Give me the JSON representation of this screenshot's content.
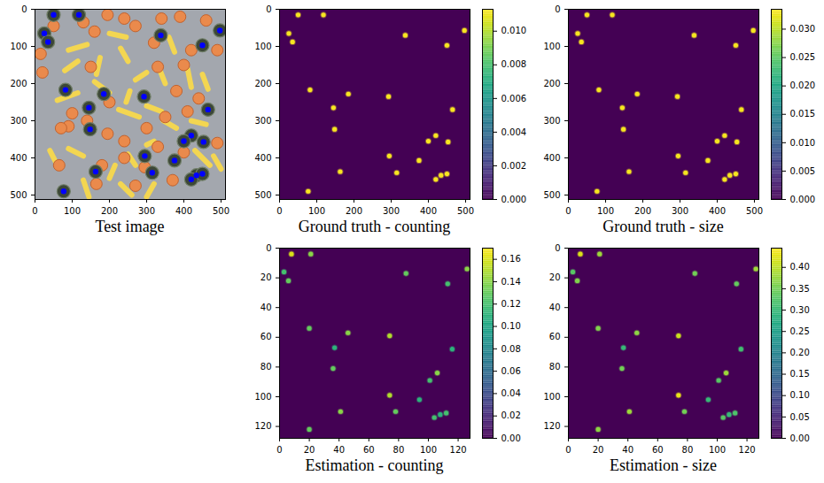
{
  "chart_data": [
    {
      "type": "image",
      "title": "Test image",
      "xlim": [
        0,
        512
      ],
      "ylim": [
        512,
        0
      ],
      "xticks": [
        0,
        100,
        200,
        300,
        400,
        500
      ],
      "yticks": [
        0,
        100,
        200,
        300,
        400,
        500
      ],
      "color": "#0000ff",
      "apples": [
        [
          50,
          45
        ],
        [
          130,
          35
        ],
        [
          195,
          15
        ],
        [
          15,
          120
        ],
        [
          20,
          170
        ],
        [
          160,
          60
        ],
        [
          240,
          25
        ],
        [
          270,
          45
        ],
        [
          340,
          25
        ],
        [
          390,
          20
        ],
        [
          460,
          30
        ],
        [
          320,
          90
        ],
        [
          420,
          110
        ],
        [
          490,
          110
        ],
        [
          150,
          155
        ],
        [
          330,
          155
        ],
        [
          400,
          150
        ],
        [
          200,
          250
        ],
        [
          380,
          220
        ],
        [
          440,
          240
        ],
        [
          100,
          280
        ],
        [
          140,
          300
        ],
        [
          90,
          315
        ],
        [
          350,
          290
        ],
        [
          410,
          275
        ],
        [
          300,
          320
        ],
        [
          195,
          335
        ],
        [
          70,
          320
        ],
        [
          240,
          355
        ],
        [
          490,
          360
        ],
        [
          330,
          370
        ],
        [
          400,
          385
        ],
        [
          65,
          420
        ],
        [
          295,
          425
        ],
        [
          165,
          470
        ],
        [
          270,
          475
        ],
        [
          370,
          460
        ],
        [
          180,
          420
        ],
        [
          240,
          400
        ]
      ],
      "bananas": [
        [
          90,
          110,
          140,
          95
        ],
        [
          200,
          65,
          245,
          75
        ],
        [
          115,
          140,
          80,
          165
        ],
        [
          175,
          130,
          165,
          175
        ],
        [
          230,
          105,
          250,
          140
        ],
        [
          360,
          75,
          375,
          115
        ],
        [
          160,
          195,
          200,
          225
        ],
        [
          115,
          225,
          60,
          245
        ],
        [
          270,
          190,
          300,
          170
        ],
        [
          330,
          150,
          350,
          200
        ],
        [
          410,
          160,
          420,
          210
        ],
        [
          450,
          175,
          465,
          215
        ],
        [
          255,
          220,
          245,
          250
        ],
        [
          225,
          270,
          280,
          290
        ],
        [
          300,
          260,
          340,
          275
        ],
        [
          345,
          300,
          380,
          320
        ],
        [
          420,
          300,
          460,
          310
        ],
        [
          40,
          380,
          55,
          410
        ],
        [
          90,
          375,
          130,
          395
        ],
        [
          250,
          390,
          270,
          420
        ],
        [
          215,
          420,
          200,
          455
        ],
        [
          130,
          460,
          145,
          505
        ],
        [
          230,
          470,
          260,
          500
        ],
        [
          320,
          470,
          300,
          505
        ],
        [
          430,
          380,
          470,
          420
        ],
        [
          480,
          395,
          500,
          430
        ],
        [
          300,
          365,
          320,
          355
        ]
      ],
      "markers": {
        "x": [
          50,
          118,
          25,
          35,
          338,
          497,
          450,
          82,
          185,
          293,
          145,
          465,
          148,
          420,
          400,
          453,
          375,
          295,
          163,
          315,
          434,
          420,
          450,
          77
        ],
        "y": [
          15,
          15,
          65,
          88,
          70,
          57,
          97,
          217,
          228,
          235,
          265,
          270,
          323,
          340,
          355,
          357,
          407,
          395,
          437,
          440,
          447,
          458,
          443,
          490
        ]
      }
    },
    {
      "type": "heatmap",
      "title": "Ground truth - counting",
      "xlim": [
        0,
        512
      ],
      "ylim": [
        512,
        0
      ],
      "xticks": [
        0,
        100,
        200,
        300,
        400,
        500
      ],
      "yticks": [
        0,
        100,
        200,
        300,
        400,
        500
      ],
      "x": [
        50,
        118,
        25,
        35,
        338,
        497,
        450,
        82,
        185,
        293,
        145,
        465,
        148,
        420,
        400,
        453,
        375,
        295,
        163,
        315,
        434,
        420,
        450,
        77
      ],
      "y": [
        15,
        15,
        65,
        88,
        70,
        57,
        97,
        217,
        228,
        235,
        265,
        270,
        323,
        340,
        355,
        357,
        407,
        395,
        437,
        440,
        447,
        458,
        443,
        490
      ],
      "values": [
        0.0112,
        0.0112,
        0.0112,
        0.0112,
        0.0112,
        0.0112,
        0.0112,
        0.0112,
        0.0112,
        0.0112,
        0.0112,
        0.0112,
        0.0112,
        0.0112,
        0.0112,
        0.0112,
        0.0112,
        0.0112,
        0.0112,
        0.0112,
        0.0112,
        0.0112,
        0.0112,
        0.0112
      ],
      "colorbar_range": [
        0,
        0.0113
      ],
      "colorbar_ticks": [
        {
          "value": 0,
          "label": "0.000"
        },
        {
          "value": 0.002,
          "label": "0.002"
        },
        {
          "value": 0.004,
          "label": "0.004"
        },
        {
          "value": 0.006,
          "label": "0.006"
        },
        {
          "value": 0.008,
          "label": "0.008"
        },
        {
          "value": 0.01,
          "label": "0.010"
        }
      ]
    },
    {
      "type": "heatmap",
      "title": "Ground truth - size",
      "xlim": [
        0,
        512
      ],
      "ylim": [
        512,
        0
      ],
      "xticks": [
        0,
        100,
        200,
        300,
        400,
        500
      ],
      "yticks": [
        0,
        100,
        200,
        300,
        400,
        500
      ],
      "x": [
        50,
        118,
        25,
        35,
        338,
        497,
        450,
        82,
        185,
        293,
        145,
        465,
        148,
        420,
        400,
        453,
        375,
        295,
        163,
        315,
        434,
        420,
        450,
        77
      ],
      "y": [
        15,
        15,
        65,
        88,
        70,
        57,
        97,
        217,
        228,
        235,
        265,
        270,
        323,
        340,
        355,
        357,
        407,
        395,
        437,
        440,
        447,
        458,
        443,
        490
      ],
      "values": [
        0.033,
        0.033,
        0.033,
        0.033,
        0.033,
        0.033,
        0.033,
        0.033,
        0.033,
        0.033,
        0.033,
        0.033,
        0.033,
        0.033,
        0.033,
        0.033,
        0.033,
        0.033,
        0.033,
        0.033,
        0.033,
        0.033,
        0.033,
        0.033
      ],
      "colorbar_range": [
        0,
        0.0335
      ],
      "colorbar_ticks": [
        {
          "value": 0,
          "label": "0.000"
        },
        {
          "value": 0.005,
          "label": "0.005"
        },
        {
          "value": 0.01,
          "label": "0.010"
        },
        {
          "value": 0.015,
          "label": "0.015"
        },
        {
          "value": 0.02,
          "label": "0.020"
        },
        {
          "value": 0.025,
          "label": "0.025"
        },
        {
          "value": 0.03,
          "label": "0.030"
        }
      ]
    },
    {
      "type": "heatmap",
      "title": "Estimation - counting",
      "xlim": [
        0,
        128
      ],
      "ylim": [
        128,
        0
      ],
      "xticks": [
        0,
        20,
        40,
        60,
        80,
        100,
        120
      ],
      "yticks": [
        0,
        20,
        40,
        60,
        80,
        100,
        120
      ],
      "x": [
        8,
        21,
        3,
        6,
        85,
        113,
        126,
        20,
        46,
        74,
        37,
        36,
        116,
        106,
        101,
        74,
        94,
        78,
        41,
        20,
        104,
        108,
        112
      ],
      "y": [
        4,
        4,
        16,
        22,
        17,
        24,
        14,
        54,
        57,
        59,
        67,
        81,
        68,
        84,
        89,
        99,
        102,
        110,
        110,
        122,
        114,
        112,
        111
      ],
      "values": [
        0.16,
        0.14,
        0.12,
        0.13,
        0.13,
        0.12,
        0.14,
        0.13,
        0.14,
        0.15,
        0.11,
        0.13,
        0.11,
        0.14,
        0.12,
        0.15,
        0.11,
        0.13,
        0.14,
        0.13,
        0.12,
        0.11,
        0.12
      ],
      "colorbar_range": [
        0,
        0.17
      ],
      "colorbar_ticks": [
        {
          "value": 0,
          "label": "0.00"
        },
        {
          "value": 0.02,
          "label": "0.02"
        },
        {
          "value": 0.04,
          "label": "0.04"
        },
        {
          "value": 0.06,
          "label": "0.06"
        },
        {
          "value": 0.08,
          "label": "0.08"
        },
        {
          "value": 0.1,
          "label": "0.10"
        },
        {
          "value": 0.12,
          "label": "0.12"
        },
        {
          "value": 0.14,
          "label": "0.14"
        },
        {
          "value": 0.16,
          "label": "0.16"
        }
      ]
    },
    {
      "type": "heatmap",
      "title": "Estimation - size",
      "xlim": [
        0,
        128
      ],
      "ylim": [
        128,
        0
      ],
      "xticks": [
        0,
        20,
        40,
        60,
        80,
        100,
        120
      ],
      "yticks": [
        0,
        20,
        40,
        60,
        80,
        100,
        120
      ],
      "x": [
        8,
        21,
        3,
        6,
        85,
        113,
        126,
        20,
        46,
        74,
        37,
        36,
        116,
        106,
        101,
        74,
        94,
        78,
        41,
        20,
        104,
        108,
        112
      ],
      "y": [
        4,
        4,
        16,
        22,
        17,
        24,
        14,
        54,
        57,
        59,
        67,
        81,
        68,
        84,
        89,
        99,
        102,
        110,
        110,
        122,
        114,
        112,
        111
      ],
      "values": [
        0.42,
        0.38,
        0.33,
        0.36,
        0.35,
        0.34,
        0.38,
        0.36,
        0.37,
        0.41,
        0.3,
        0.35,
        0.31,
        0.38,
        0.33,
        0.43,
        0.3,
        0.35,
        0.38,
        0.37,
        0.33,
        0.3,
        0.32
      ],
      "colorbar_range": [
        0,
        0.445
      ],
      "colorbar_ticks": [
        {
          "value": 0,
          "label": "0.00"
        },
        {
          "value": 0.05,
          "label": "0.05"
        },
        {
          "value": 0.1,
          "label": "0.10"
        },
        {
          "value": 0.15,
          "label": "0.15"
        },
        {
          "value": 0.2,
          "label": "0.20"
        },
        {
          "value": 0.25,
          "label": "0.25"
        },
        {
          "value": 0.3,
          "label": "0.30"
        },
        {
          "value": 0.35,
          "label": "0.35"
        },
        {
          "value": 0.4,
          "label": "0.40"
        }
      ]
    }
  ]
}
